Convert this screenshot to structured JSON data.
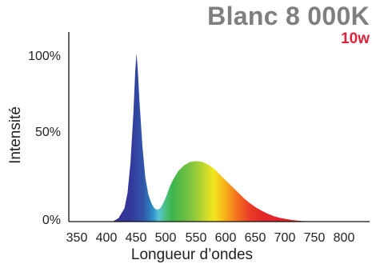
{
  "header": {
    "title": "Blanc 8 000K",
    "subtitle": "10w"
  },
  "chart_data": {
    "type": "area",
    "title": "Blanc 8 000K",
    "subtitle": "10w",
    "xlabel": "Longueur d’ondes",
    "ylabel": "Intensité",
    "xlim": [
      330,
      830
    ],
    "ylim": [
      0,
      100
    ],
    "x_ticks": [
      "350",
      "400",
      "450",
      "500",
      "550",
      "600",
      "650",
      "700",
      "750",
      "800"
    ],
    "y_ticks": [
      "0%",
      "50%",
      "100%"
    ],
    "grid": false,
    "series": [
      {
        "x": [
          410,
          420,
          430,
          435,
          440,
          445,
          448,
          450,
          452,
          455,
          460,
          465,
          470,
          475,
          480,
          485,
          490,
          495,
          500,
          505,
          510,
          520,
          530,
          540,
          550,
          560,
          570,
          580,
          590,
          600,
          610,
          620,
          630,
          640,
          650,
          660,
          670,
          680,
          690,
          700,
          710,
          720,
          730,
          740,
          750
        ],
        "values": [
          0,
          2,
          8,
          17,
          35,
          65,
          90,
          100,
          92,
          72,
          45,
          26,
          16,
          11,
          8,
          7,
          8,
          11,
          15,
          20,
          24,
          30,
          33.5,
          35.5,
          36,
          35.5,
          34,
          31.5,
          28,
          24.5,
          21,
          17.5,
          14,
          11,
          8.5,
          6.5,
          4.7,
          3.3,
          2.3,
          1.6,
          1.0,
          0.6,
          0.3,
          0.1,
          0
        ]
      }
    ]
  }
}
